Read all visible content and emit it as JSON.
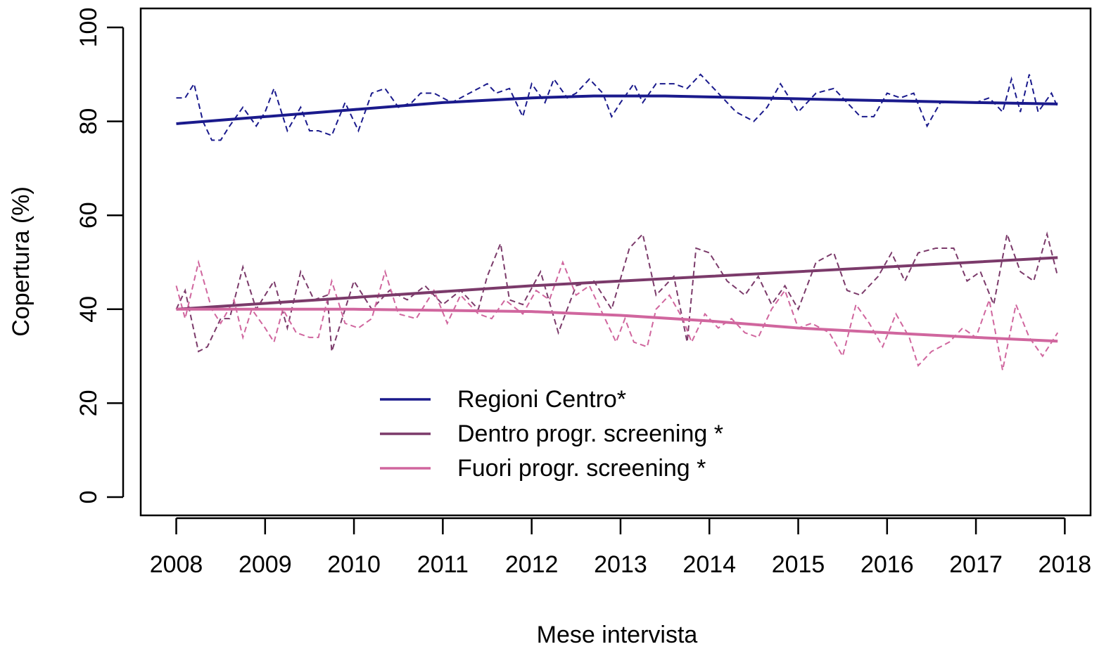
{
  "chart_data": {
    "type": "line",
    "x_label": "Mese intervista",
    "y_label": "Copertura (%)",
    "xlim": [
      2007.6,
      2018.29
    ],
    "ylim": [
      -3.89,
      104.04
    ],
    "xticks": [
      2008,
      2009,
      2010,
      2011,
      2012,
      2013,
      2014,
      2015,
      2016,
      2017,
      2018
    ],
    "yticks": [
      0,
      20,
      40,
      60,
      80,
      100
    ],
    "series": [
      {
        "name": "Regioni Centro*",
        "color": "#1a1a8c",
        "x": [
          2008,
          2009,
          2010,
          2011,
          2012,
          2012.7,
          2013.5,
          2014,
          2015,
          2016,
          2017,
          2017.92
        ],
        "values": [
          79.5,
          81,
          82.5,
          84,
          85,
          85.4,
          85.4,
          85.2,
          84.8,
          84.4,
          84,
          83.7
        ],
        "monthly_x": [
          2008,
          2008.1,
          2008.2,
          2008.3,
          2008.4,
          2008.5,
          2008.6,
          2008.75,
          2008.9,
          2009.0,
          2009.1,
          2009.25,
          2009.4,
          2009.5,
          2009.6,
          2009.75,
          2009.9,
          2010.05,
          2010.2,
          2010.35,
          2010.5,
          2010.65,
          2010.75,
          2010.9,
          2011.1,
          2011.3,
          2011.5,
          2011.6,
          2011.75,
          2011.9,
          2012.0,
          2012.15,
          2012.25,
          2012.4,
          2012.5,
          2012.65,
          2012.8,
          2012.9,
          2013.0,
          2013.15,
          2013.25,
          2013.4,
          2013.6,
          2013.75,
          2013.9,
          2014.1,
          2014.3,
          2014.5,
          2014.65,
          2014.8,
          2015.0,
          2015.2,
          2015.4,
          2015.55,
          2015.7,
          2015.85,
          2016.0,
          2016.15,
          2016.3,
          2016.45,
          2016.6,
          2016.8,
          2017.0,
          2017.15,
          2017.3,
          2017.4,
          2017.5,
          2017.6,
          2017.7,
          2017.85,
          2017.92
        ],
        "monthly_values": [
          85,
          85,
          88,
          80,
          76,
          76,
          79,
          83,
          79,
          82,
          87,
          78,
          83,
          78,
          78,
          77,
          84,
          78,
          86,
          87,
          83,
          84,
          86,
          86,
          84,
          86,
          88,
          86,
          87,
          81,
          88,
          84,
          89,
          85,
          86,
          89,
          86,
          81,
          84,
          88,
          84,
          88,
          88,
          87,
          90,
          86,
          82,
          80,
          83,
          88,
          82,
          86,
          87,
          84,
          81,
          81,
          86,
          85,
          86,
          79,
          84,
          84,
          84,
          85,
          82,
          89,
          82,
          90,
          82,
          86,
          83
        ]
      },
      {
        "name": "Dentro progr. screening *",
        "color": "#7b3a6a",
        "x": [
          2008,
          2010,
          2012,
          2014,
          2016,
          2017.92
        ],
        "values": [
          40,
          42.5,
          45,
          47,
          49,
          51
        ],
        "monthly_x": [
          2008,
          2008.1,
          2008.25,
          2008.35,
          2008.5,
          2008.6,
          2008.75,
          2008.9,
          2009.1,
          2009.25,
          2009.4,
          2009.55,
          2009.7,
          2009.75,
          2009.9,
          2010.0,
          2010.2,
          2010.4,
          2010.6,
          2010.8,
          2011.0,
          2011.2,
          2011.4,
          2011.5,
          2011.65,
          2011.75,
          2011.9,
          2012.1,
          2012.3,
          2012.5,
          2012.7,
          2012.9,
          2013.1,
          2013.25,
          2013.4,
          2013.6,
          2013.75,
          2013.85,
          2014.0,
          2014.2,
          2014.4,
          2014.55,
          2014.7,
          2014.85,
          2015.0,
          2015.2,
          2015.4,
          2015.55,
          2015.7,
          2015.9,
          2016.05,
          2016.2,
          2016.35,
          2016.55,
          2016.75,
          2016.9,
          2017.05,
          2017.2,
          2017.35,
          2017.5,
          2017.65,
          2017.8,
          2017.92
        ],
        "monthly_values": [
          40,
          44,
          31,
          32,
          38,
          38,
          49,
          40,
          46,
          36,
          48,
          42,
          43,
          31,
          40,
          46,
          40,
          44,
          42,
          45,
          41,
          44,
          40,
          47,
          54,
          42,
          41,
          48,
          35,
          45,
          46,
          40,
          53,
          56,
          43,
          47,
          33,
          53,
          52,
          46,
          43,
          47,
          41,
          45,
          40,
          50,
          52,
          44,
          43,
          47,
          52,
          46,
          52,
          53,
          53,
          46,
          48,
          41,
          56,
          48,
          46,
          56,
          47
        ]
      },
      {
        "name": "Fuori progr. screening *",
        "color": "#d0669e",
        "x": [
          2008,
          2010,
          2012,
          2013,
          2014,
          2015,
          2016,
          2017,
          2017.92
        ],
        "values": [
          40,
          40,
          39.5,
          38.7,
          37.5,
          36,
          35,
          34,
          33.2
        ],
        "monthly_x": [
          2008,
          2008.1,
          2008.25,
          2008.4,
          2008.5,
          2008.65,
          2008.75,
          2008.85,
          2009.0,
          2009.1,
          2009.2,
          2009.35,
          2009.5,
          2009.6,
          2009.75,
          2009.9,
          2010.05,
          2010.2,
          2010.35,
          2010.5,
          2010.7,
          2010.9,
          2011.05,
          2011.2,
          2011.4,
          2011.55,
          2011.7,
          2011.9,
          2012.05,
          2012.2,
          2012.35,
          2012.5,
          2012.65,
          2012.8,
          2012.95,
          2013.05,
          2013.15,
          2013.3,
          2013.4,
          2013.55,
          2013.7,
          2013.8,
          2013.95,
          2014.1,
          2014.25,
          2014.4,
          2014.55,
          2014.7,
          2014.85,
          2015.0,
          2015.15,
          2015.35,
          2015.5,
          2015.65,
          2015.8,
          2015.95,
          2016.1,
          2016.25,
          2016.35,
          2016.5,
          2016.7,
          2016.85,
          2017.0,
          2017.15,
          2017.3,
          2017.45,
          2017.6,
          2017.75,
          2017.92
        ],
        "monthly_values": [
          45,
          38,
          50,
          40,
          37,
          42,
          34,
          40,
          36,
          33,
          40,
          35,
          34,
          34,
          46,
          37,
          36,
          38,
          48,
          39,
          38,
          44,
          37,
          43,
          39,
          38,
          42,
          39,
          44,
          42,
          50,
          43,
          45,
          39,
          33,
          38,
          33,
          32,
          40,
          43,
          38,
          33,
          39,
          36,
          38,
          35,
          34,
          40,
          44,
          36,
          37,
          35,
          30,
          41,
          37,
          32,
          39,
          34,
          28,
          31,
          33,
          36,
          34,
          42,
          27,
          41,
          34,
          30,
          35
        ]
      }
    ]
  }
}
